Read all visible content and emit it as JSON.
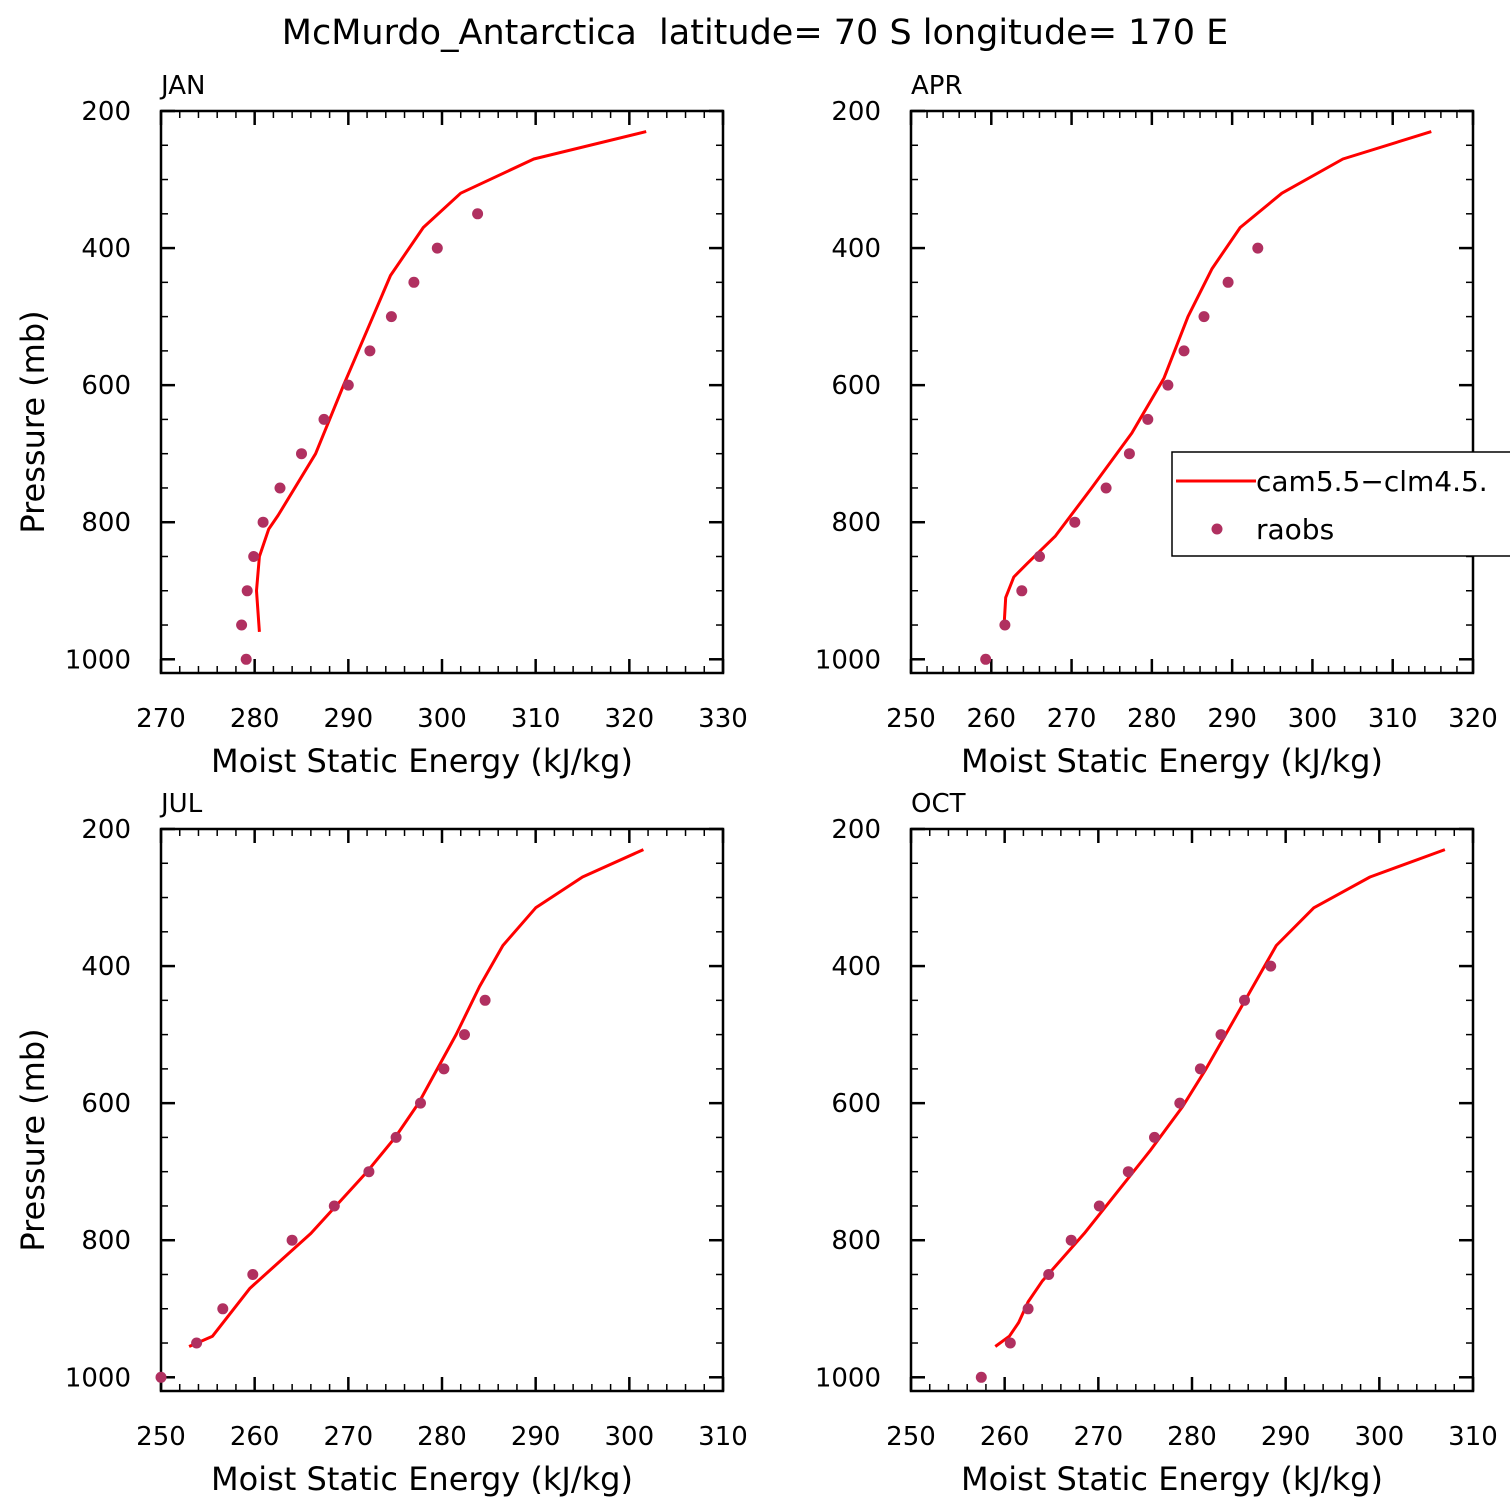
{
  "figure": {
    "title": "McMurdo_Antarctica  latitude= 70 S longitude= 170 E"
  },
  "colors": {
    "model": "#ff0000",
    "obs": "#b03060",
    "axis": "#000000"
  },
  "legend": {
    "placement": "right of APR panel",
    "entries": [
      {
        "label": "cam5.5−clm4.5.",
        "style": "line"
      },
      {
        "label": "raobs",
        "style": "dot"
      }
    ]
  },
  "chart_data": [
    {
      "type": "line",
      "panel": "JAN",
      "xlabel": "Moist Static Energy (kJ/kg)",
      "ylabel": "Pressure (mb)",
      "xlim": [
        270,
        330
      ],
      "ylim": [
        1020,
        200
      ],
      "y_inverted": true,
      "xticks": [
        270,
        280,
        290,
        300,
        310,
        320,
        330
      ],
      "yticks": [
        200,
        400,
        600,
        800,
        1000
      ],
      "series": [
        {
          "name": "cam5.5−clm4.5.",
          "style": "line",
          "points": [
            [
              321.8,
              230
            ],
            [
              309.8,
              270
            ],
            [
              302,
              320
            ],
            [
              298,
              370
            ],
            [
              294.5,
              440
            ],
            [
              292,
              520
            ],
            [
              289.5,
              600
            ],
            [
              286.5,
              700
            ],
            [
              282.5,
              790
            ],
            [
              281.5,
              810
            ],
            [
              280.5,
              850
            ],
            [
              280.2,
              900
            ],
            [
              280.5,
              960
            ]
          ]
        },
        {
          "name": "raobs",
          "style": "dot",
          "points": [
            [
              303.8,
              350
            ],
            [
              299.5,
              400
            ],
            [
              297,
              450
            ],
            [
              294.6,
              500
            ],
            [
              292.3,
              550
            ],
            [
              290,
              600
            ],
            [
              287.4,
              650
            ],
            [
              285,
              700
            ],
            [
              282.7,
              750
            ],
            [
              280.9,
              800
            ],
            [
              279.9,
              850
            ],
            [
              279.2,
              900
            ],
            [
              278.6,
              950
            ],
            [
              279.1,
              1000
            ]
          ]
        }
      ]
    },
    {
      "type": "line",
      "panel": "APR",
      "xlabel": "Moist Static Energy (kJ/kg)",
      "ylabel": "",
      "xlim": [
        250,
        320
      ],
      "ylim": [
        1020,
        200
      ],
      "y_inverted": true,
      "xticks": [
        250,
        260,
        270,
        280,
        290,
        300,
        310,
        320
      ],
      "yticks": [
        200,
        400,
        600,
        800,
        1000
      ],
      "series": [
        {
          "name": "cam5.5−clm4.5.",
          "style": "line",
          "points": [
            [
              314.8,
              230
            ],
            [
              303.8,
              270
            ],
            [
              296.2,
              320
            ],
            [
              291,
              370
            ],
            [
              287.5,
              430
            ],
            [
              284.5,
              500
            ],
            [
              281.5,
              590
            ],
            [
              277.5,
              670
            ],
            [
              272.5,
              750
            ],
            [
              268,
              820
            ],
            [
              264.5,
              860
            ],
            [
              262.8,
              880
            ],
            [
              261.8,
              910
            ],
            [
              261.6,
              950
            ]
          ]
        },
        {
          "name": "raobs",
          "style": "dot",
          "points": [
            [
              293.2,
              400
            ],
            [
              289.5,
              450
            ],
            [
              286.5,
              500
            ],
            [
              284,
              550
            ],
            [
              282,
              600
            ],
            [
              279.5,
              650
            ],
            [
              277.2,
              700
            ],
            [
              274.3,
              750
            ],
            [
              270.4,
              800
            ],
            [
              266,
              850
            ],
            [
              263.8,
              900
            ],
            [
              261.7,
              950
            ],
            [
              259.3,
              1000
            ]
          ]
        }
      ]
    },
    {
      "type": "line",
      "panel": "JUL",
      "xlabel": "Moist Static Energy (kJ/kg)",
      "ylabel": "Pressure (mb)",
      "xlim": [
        250,
        310
      ],
      "ylim": [
        1020,
        200
      ],
      "y_inverted": true,
      "xticks": [
        250,
        260,
        270,
        280,
        290,
        300,
        310
      ],
      "yticks": [
        200,
        400,
        600,
        800,
        1000
      ],
      "series": [
        {
          "name": "cam5.5−clm4.5.",
          "style": "line",
          "points": [
            [
              301.5,
              230
            ],
            [
              295,
              270
            ],
            [
              290,
              315
            ],
            [
              286.5,
              370
            ],
            [
              284,
              430
            ],
            [
              281.5,
              500
            ],
            [
              279.5,
              550
            ],
            [
              277.5,
              600
            ],
            [
              275,
              650
            ],
            [
              272,
              700
            ],
            [
              266,
              790
            ],
            [
              259.5,
              870
            ],
            [
              255.5,
              940
            ],
            [
              253,
              955
            ]
          ]
        },
        {
          "name": "raobs",
          "style": "dot",
          "points": [
            [
              284.6,
              450
            ],
            [
              282.4,
              500
            ],
            [
              280.2,
              550
            ],
            [
              277.7,
              600
            ],
            [
              275.1,
              650
            ],
            [
              272.2,
              700
            ],
            [
              268.5,
              750
            ],
            [
              264,
              800
            ],
            [
              259.8,
              850
            ],
            [
              256.6,
              900
            ],
            [
              253.8,
              950
            ],
            [
              250,
              1000
            ]
          ]
        }
      ]
    },
    {
      "type": "line",
      "panel": "OCT",
      "xlabel": "Moist Static Energy (kJ/kg)",
      "ylabel": "",
      "xlim": [
        250,
        310
      ],
      "ylim": [
        1020,
        200
      ],
      "y_inverted": true,
      "xticks": [
        250,
        260,
        270,
        280,
        290,
        300,
        310
      ],
      "yticks": [
        200,
        400,
        600,
        800,
        1000
      ],
      "series": [
        {
          "name": "cam5.5−clm4.5.",
          "style": "line",
          "points": [
            [
              307,
              230
            ],
            [
              299,
              270
            ],
            [
              293,
              315
            ],
            [
              289,
              370
            ],
            [
              286.5,
              430
            ],
            [
              284,
              490
            ],
            [
              281.5,
              550
            ],
            [
              279,
              605
            ],
            [
              275.5,
              670
            ],
            [
              272,
              730
            ],
            [
              268.5,
              790
            ],
            [
              264,
              860
            ],
            [
              262.5,
              890
            ],
            [
              261.5,
              920
            ],
            [
              260.5,
              940
            ],
            [
              259,
              955
            ]
          ]
        },
        {
          "name": "raobs",
          "style": "dot",
          "points": [
            [
              288.4,
              400
            ],
            [
              285.6,
              450
            ],
            [
              283.1,
              500
            ],
            [
              280.9,
              550
            ],
            [
              278.7,
              600
            ],
            [
              276,
              650
            ],
            [
              273.2,
              700
            ],
            [
              270.1,
              750
            ],
            [
              267.1,
              800
            ],
            [
              264.7,
              850
            ],
            [
              262.5,
              900
            ],
            [
              260.6,
              950
            ],
            [
              257.5,
              1000
            ]
          ]
        }
      ]
    }
  ]
}
